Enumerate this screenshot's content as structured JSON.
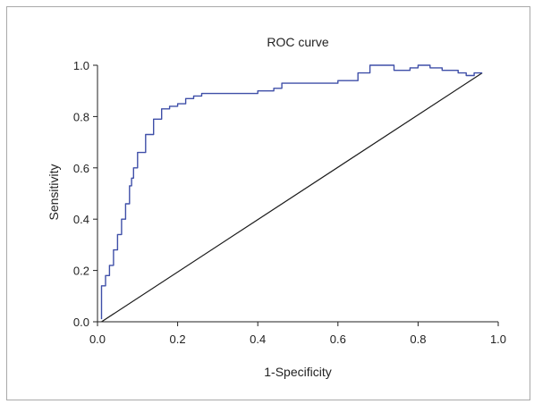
{
  "chart_data": {
    "type": "line",
    "title": "ROC curve",
    "xlabel": "1-Specificity",
    "ylabel": "Sensitivity",
    "xlim": [
      0.0,
      1.0
    ],
    "ylim": [
      0.0,
      1.0
    ],
    "xticks": [
      "0.0",
      "0.2",
      "0.4",
      "0.6",
      "0.8",
      "1.0"
    ],
    "yticks": [
      "0.0",
      "0.2",
      "0.4",
      "0.6",
      "0.8",
      "1.0"
    ],
    "grid": false,
    "legend": "none",
    "colors": {
      "roc": "#3f4fa8",
      "reference": "#1a1a1a"
    },
    "series": [
      {
        "x": [
          0.01,
          0.01,
          0.02,
          0.03,
          0.04,
          0.05,
          0.06,
          0.07,
          0.08,
          0.085,
          0.09,
          0.1,
          0.12,
          0.14,
          0.16,
          0.18,
          0.2,
          0.22,
          0.24,
          0.26,
          0.28,
          0.3,
          0.35,
          0.4,
          0.44,
          0.46,
          0.5,
          0.55,
          0.6,
          0.65,
          0.68,
          0.7,
          0.74,
          0.76,
          0.78,
          0.8,
          0.83,
          0.86,
          0.88,
          0.9,
          0.92,
          0.94,
          0.96
        ],
        "y": [
          0.01,
          0.1,
          0.14,
          0.18,
          0.22,
          0.28,
          0.34,
          0.4,
          0.46,
          0.53,
          0.56,
          0.6,
          0.66,
          0.73,
          0.79,
          0.83,
          0.84,
          0.85,
          0.87,
          0.88,
          0.89,
          0.89,
          0.89,
          0.89,
          0.9,
          0.91,
          0.93,
          0.93,
          0.93,
          0.94,
          0.97,
          1.0,
          1.0,
          0.98,
          0.98,
          0.99,
          1.0,
          0.99,
          0.98,
          0.98,
          0.97,
          0.96,
          0.97
        ]
      },
      {
        "x": [
          0.01,
          0.96
        ],
        "y": [
          0.0,
          0.97
        ]
      }
    ]
  }
}
